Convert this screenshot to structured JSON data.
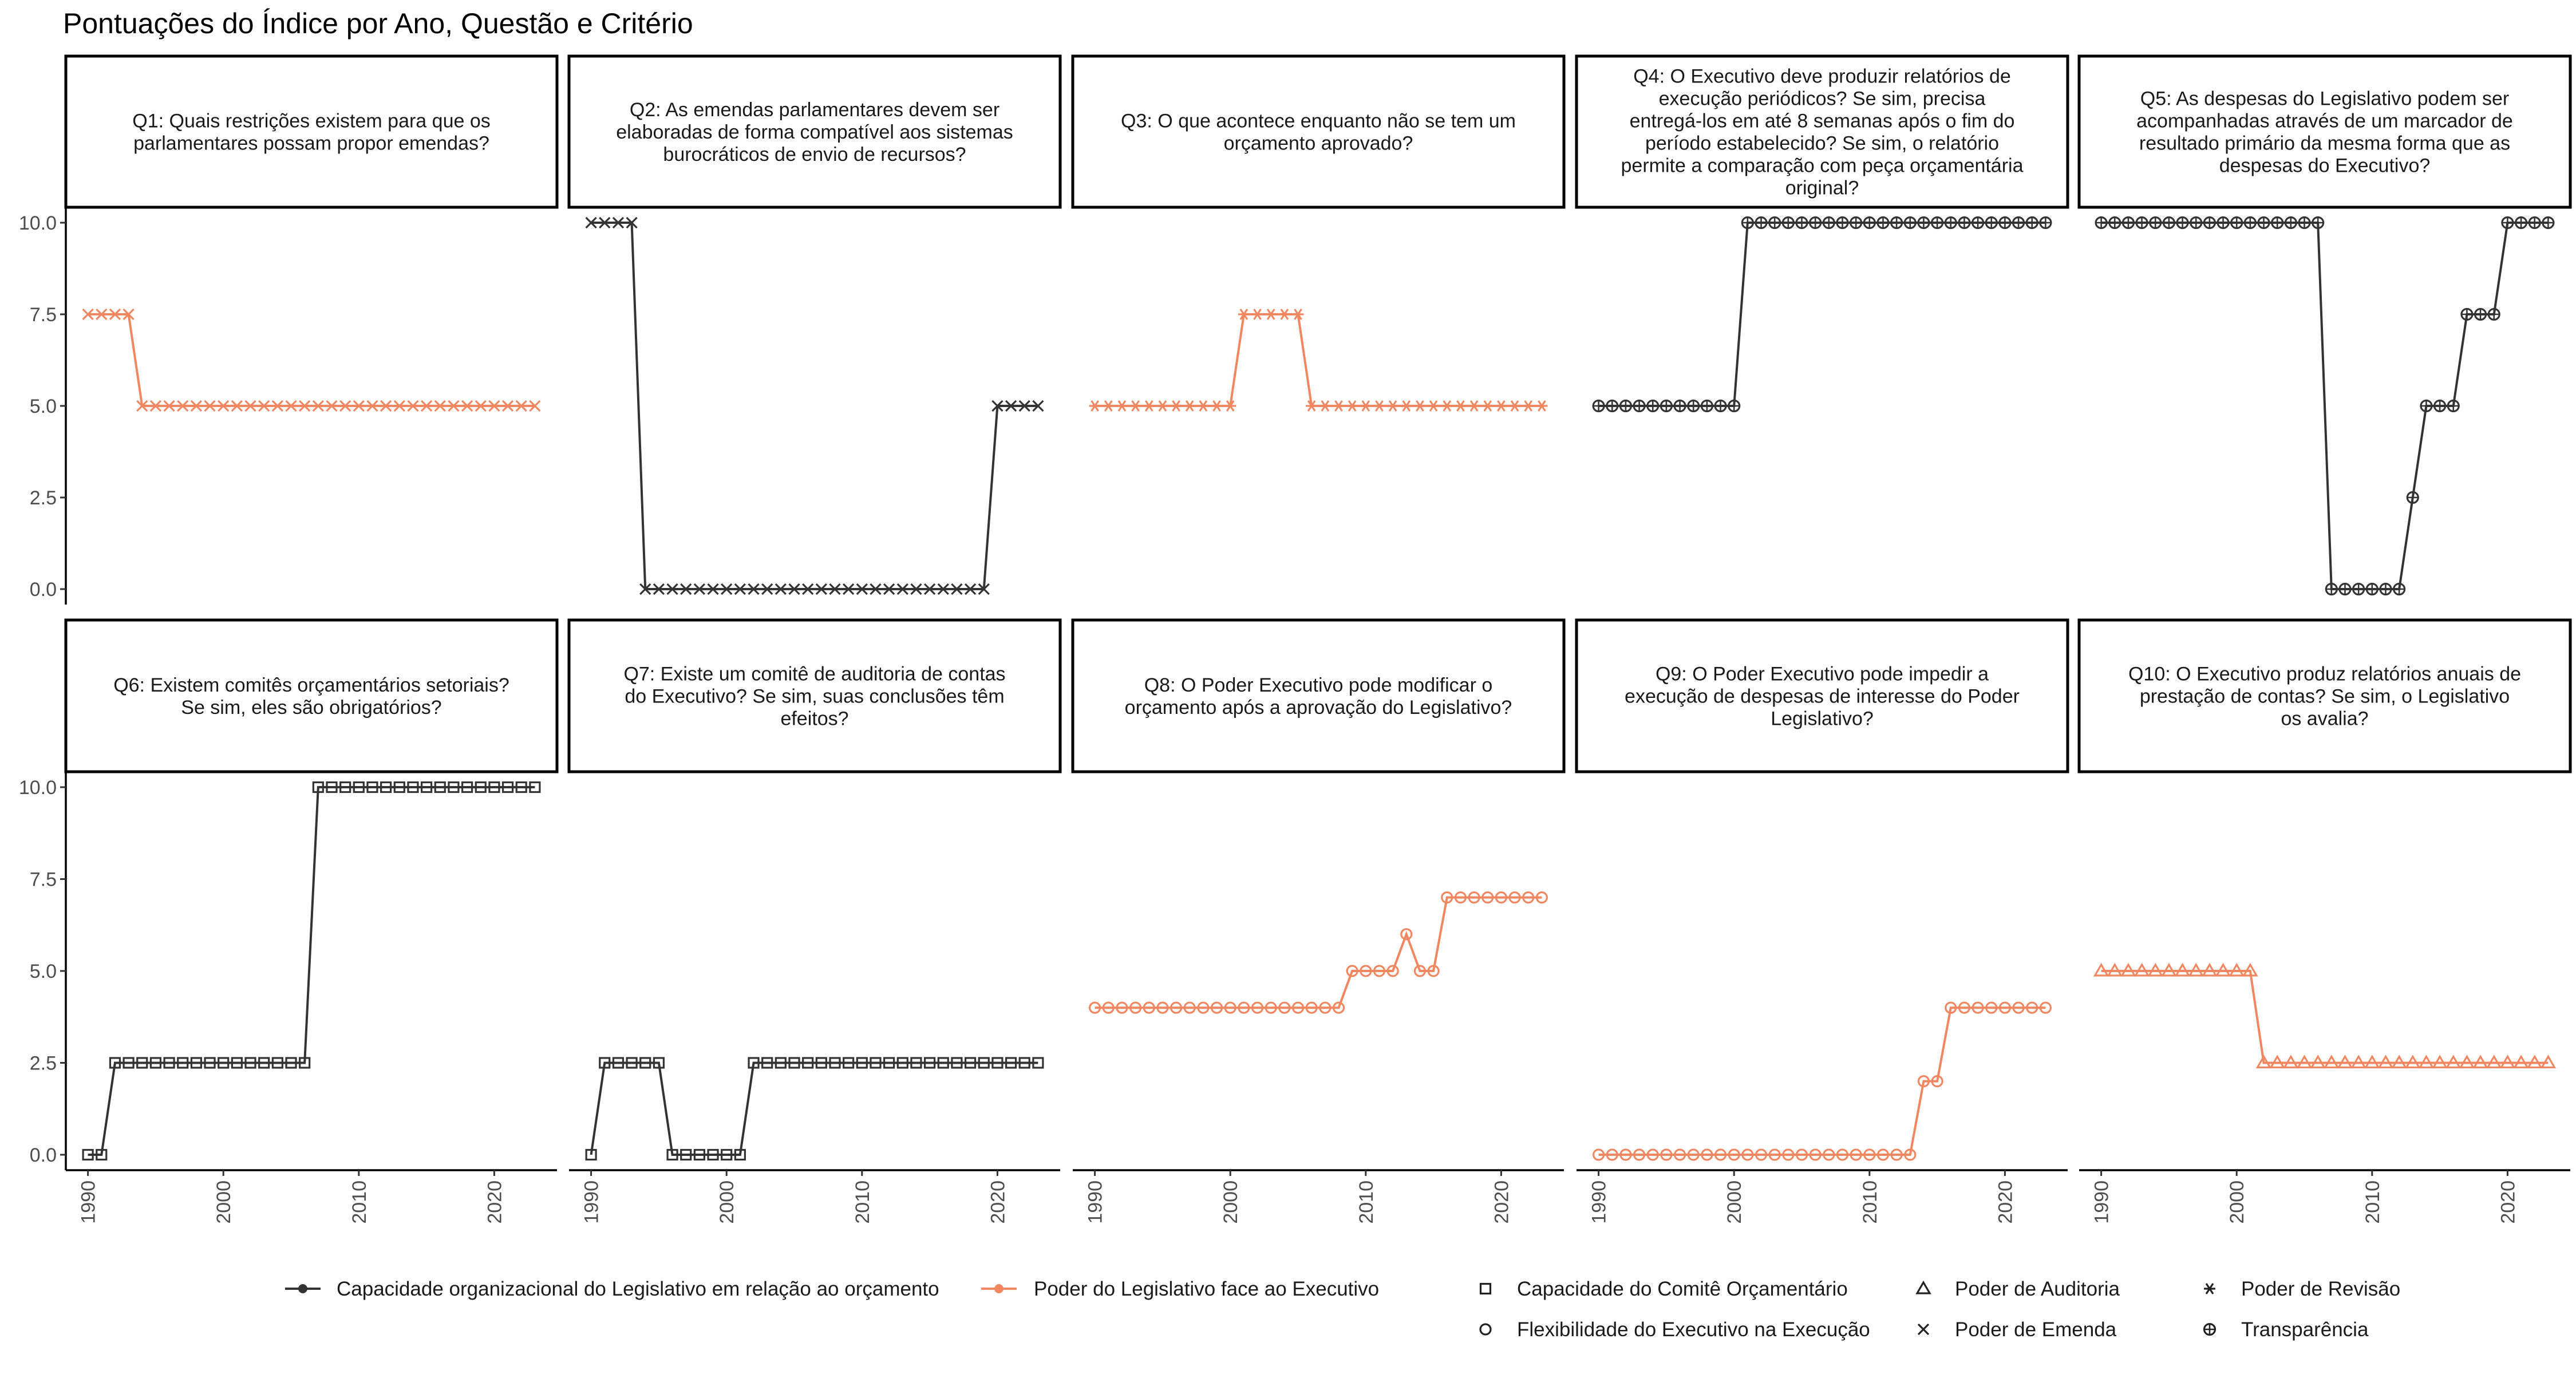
{
  "title": "Pontuações do Índice por Ano, Questão e Critério",
  "colors": {
    "organizacional": "#333333",
    "poder": "#F08760"
  },
  "legend": {
    "lines": [
      {
        "key": "organizacional",
        "label": "Capacidade organizacional do Legislativo em relação ao orçamento"
      },
      {
        "key": "poder",
        "label": "Poder do Legislativo face ao Executivo"
      }
    ],
    "shapes": [
      {
        "shape": "square",
        "label": "Capacidade do Comitê Orçamentário"
      },
      {
        "shape": "circle",
        "label": "Flexibilidade do Executivo na Execução"
      },
      {
        "shape": "triangle",
        "label": "Poder de Auditoria"
      },
      {
        "shape": "x",
        "label": "Poder de Emenda"
      },
      {
        "shape": "asterisk",
        "label": "Poder de Revisão"
      },
      {
        "shape": "circleplus",
        "label": "Transparência"
      }
    ]
  },
  "chart_data": {
    "type": "line",
    "title": "Pontuações do Índice por Ano, Questão e Critério",
    "xlim": [
      1990,
      2023
    ],
    "ylim": [
      0,
      10
    ],
    "x_ticks": [
      1990,
      2000,
      2010,
      2020
    ],
    "y_ticks": [
      "0.0",
      "2.5",
      "5.0",
      "7.5",
      "10.0"
    ],
    "y_tick_values": [
      0,
      2.5,
      5,
      7.5,
      10
    ],
    "legend_position": "bottom",
    "facets": [
      {
        "label": "Q1: Quais restrições existem para que os parlamentares possam propor emendas?",
        "label_lines": [
          "Q1: Quais restrições existem para que os",
          "parlamentares possam propor emendas?"
        ],
        "series": "poder",
        "shape": "x",
        "x_start": 1990,
        "values": [
          7.5,
          7.5,
          7.5,
          7.5,
          5,
          5,
          5,
          5,
          5,
          5,
          5,
          5,
          5,
          5,
          5,
          5,
          5,
          5,
          5,
          5,
          5,
          5,
          5,
          5,
          5,
          5,
          5,
          5,
          5,
          5,
          5,
          5,
          5,
          5
        ]
      },
      {
        "label": "Q2: As emendas parlamentares devem ser elaboradas de forma compatível aos sistemas burocráticos de envio de recursos?",
        "label_lines": [
          "Q2: As emendas parlamentares devem ser",
          "elaboradas de forma compatível aos sistemas",
          "burocráticos de envio de recursos?"
        ],
        "series": "organizacional",
        "shape": "x",
        "x_start": 1990,
        "values": [
          10,
          10,
          10,
          10,
          0,
          0,
          0,
          0,
          0,
          0,
          0,
          0,
          0,
          0,
          0,
          0,
          0,
          0,
          0,
          0,
          0,
          0,
          0,
          0,
          0,
          0,
          0,
          0,
          0,
          0,
          5,
          5,
          5,
          5
        ]
      },
      {
        "label": "Q3: O que acontece enquanto não se tem um orçamento aprovado?",
        "label_lines": [
          "Q3: O que acontece enquanto não se tem um",
          "orçamento aprovado?"
        ],
        "series": "poder",
        "shape": "asterisk",
        "x_start": 1990,
        "values": [
          5,
          5,
          5,
          5,
          5,
          5,
          5,
          5,
          5,
          5,
          5,
          7.5,
          7.5,
          7.5,
          7.5,
          7.5,
          5,
          5,
          5,
          5,
          5,
          5,
          5,
          5,
          5,
          5,
          5,
          5,
          5,
          5,
          5,
          5,
          5,
          5
        ]
      },
      {
        "label": "Q4: O Executivo deve produzir relatórios de execução periódicos? Se sim, precisa entregá-los em até 8 semanas após o fim do período estabelecido? Se sim, o relatório permite a comparação com peça orçamentária original?",
        "label_lines": [
          "Q4: O Executivo deve produzir relatórios de",
          "execução periódicos? Se sim, precisa",
          "entregá-los em até 8 semanas após o fim do",
          "período estabelecido? Se sim, o relatório",
          "permite a comparação com peça orçamentária",
          "original?"
        ],
        "series": "organizacional",
        "shape": "circleplus",
        "x_start": 1990,
        "values": [
          5,
          5,
          5,
          5,
          5,
          5,
          5,
          5,
          5,
          5,
          5,
          10,
          10,
          10,
          10,
          10,
          10,
          10,
          10,
          10,
          10,
          10,
          10,
          10,
          10,
          10,
          10,
          10,
          10,
          10,
          10,
          10,
          10,
          10
        ]
      },
      {
        "label": "Q5: As despesas do Legislativo podem ser acompanhadas através de um marcador de resultado primário da mesma forma que as despesas do Executivo?",
        "label_lines": [
          "Q5: As despesas do Legislativo podem ser",
          "acompanhadas através de um marcador de",
          "resultado primário da mesma forma que as",
          "despesas do Executivo?"
        ],
        "series": "organizacional",
        "shape": "circleplus",
        "x_start": 1990,
        "values": [
          10,
          10,
          10,
          10,
          10,
          10,
          10,
          10,
          10,
          10,
          10,
          10,
          10,
          10,
          10,
          10,
          10,
          0,
          0,
          0,
          0,
          0,
          0,
          2.5,
          5,
          5,
          5,
          7.5,
          7.5,
          7.5,
          10,
          10,
          10,
          10
        ]
      },
      {
        "label": "Q6: Existem comitês orçamentários setoriais? Se sim, eles são obrigatórios?",
        "label_lines": [
          "Q6: Existem comitês orçamentários setoriais?",
          "Se sim, eles são obrigatórios?"
        ],
        "series": "organizacional",
        "shape": "square",
        "x_start": 1990,
        "values": [
          0,
          0,
          2.5,
          2.5,
          2.5,
          2.5,
          2.5,
          2.5,
          2.5,
          2.5,
          2.5,
          2.5,
          2.5,
          2.5,
          2.5,
          2.5,
          2.5,
          10,
          10,
          10,
          10,
          10,
          10,
          10,
          10,
          10,
          10,
          10,
          10,
          10,
          10,
          10,
          10,
          10
        ]
      },
      {
        "label": "Q7: Existe um comitê de auditoria de contas do Executivo? Se sim, suas conclusões têm efeitos?",
        "label_lines": [
          "Q7: Existe um comitê de auditoria de contas",
          "do Executivo? Se sim, suas conclusões têm",
          "efeitos?"
        ],
        "series": "organizacional",
        "shape": "square",
        "x_start": 1990,
        "values": [
          0,
          2.5,
          2.5,
          2.5,
          2.5,
          2.5,
          0,
          0,
          0,
          0,
          0,
          0,
          2.5,
          2.5,
          2.5,
          2.5,
          2.5,
          2.5,
          2.5,
          2.5,
          2.5,
          2.5,
          2.5,
          2.5,
          2.5,
          2.5,
          2.5,
          2.5,
          2.5,
          2.5,
          2.5,
          2.5,
          2.5,
          2.5
        ]
      },
      {
        "label": "Q8: O Poder Executivo pode modificar o orçamento após a aprovação do Legislativo?",
        "label_lines": [
          "Q8: O Poder Executivo pode modificar o",
          "orçamento após a aprovação do Legislativo?"
        ],
        "series": "poder",
        "shape": "circle",
        "x_start": 1990,
        "values": [
          4,
          4,
          4,
          4,
          4,
          4,
          4,
          4,
          4,
          4,
          4,
          4,
          4,
          4,
          4,
          4,
          4,
          4,
          4,
          5,
          5,
          5,
          5,
          6,
          5,
          5,
          7,
          7,
          7,
          7,
          7,
          7,
          7,
          7
        ]
      },
      {
        "label": "Q9: O Poder Executivo pode impedir a execução de despesas de interesse do Poder Legislativo?",
        "label_lines": [
          "Q9: O Poder Executivo pode impedir a",
          "execução de despesas de interesse do Poder",
          "Legislativo?"
        ],
        "series": "poder",
        "shape": "circle",
        "x_start": 1990,
        "values": [
          0,
          0,
          0,
          0,
          0,
          0,
          0,
          0,
          0,
          0,
          0,
          0,
          0,
          0,
          0,
          0,
          0,
          0,
          0,
          0,
          0,
          0,
          0,
          0,
          2,
          2,
          4,
          4,
          4,
          4,
          4,
          4,
          4,
          4
        ]
      },
      {
        "label": "Q10: O Executivo produz relatórios anuais de prestação de contas? Se sim, o Legislativo os avalia?",
        "label_lines": [
          "Q10: O Executivo produz relatórios anuais de",
          "prestação de contas? Se sim, o Legislativo",
          "os avalia?"
        ],
        "series": "poder",
        "shape": "triangle",
        "x_start": 1990,
        "values": [
          5,
          5,
          5,
          5,
          5,
          5,
          5,
          5,
          5,
          5,
          5,
          5,
          2.5,
          2.5,
          2.5,
          2.5,
          2.5,
          2.5,
          2.5,
          2.5,
          2.5,
          2.5,
          2.5,
          2.5,
          2.5,
          2.5,
          2.5,
          2.5,
          2.5,
          2.5,
          2.5,
          2.5,
          2.5,
          2.5
        ]
      }
    ]
  }
}
